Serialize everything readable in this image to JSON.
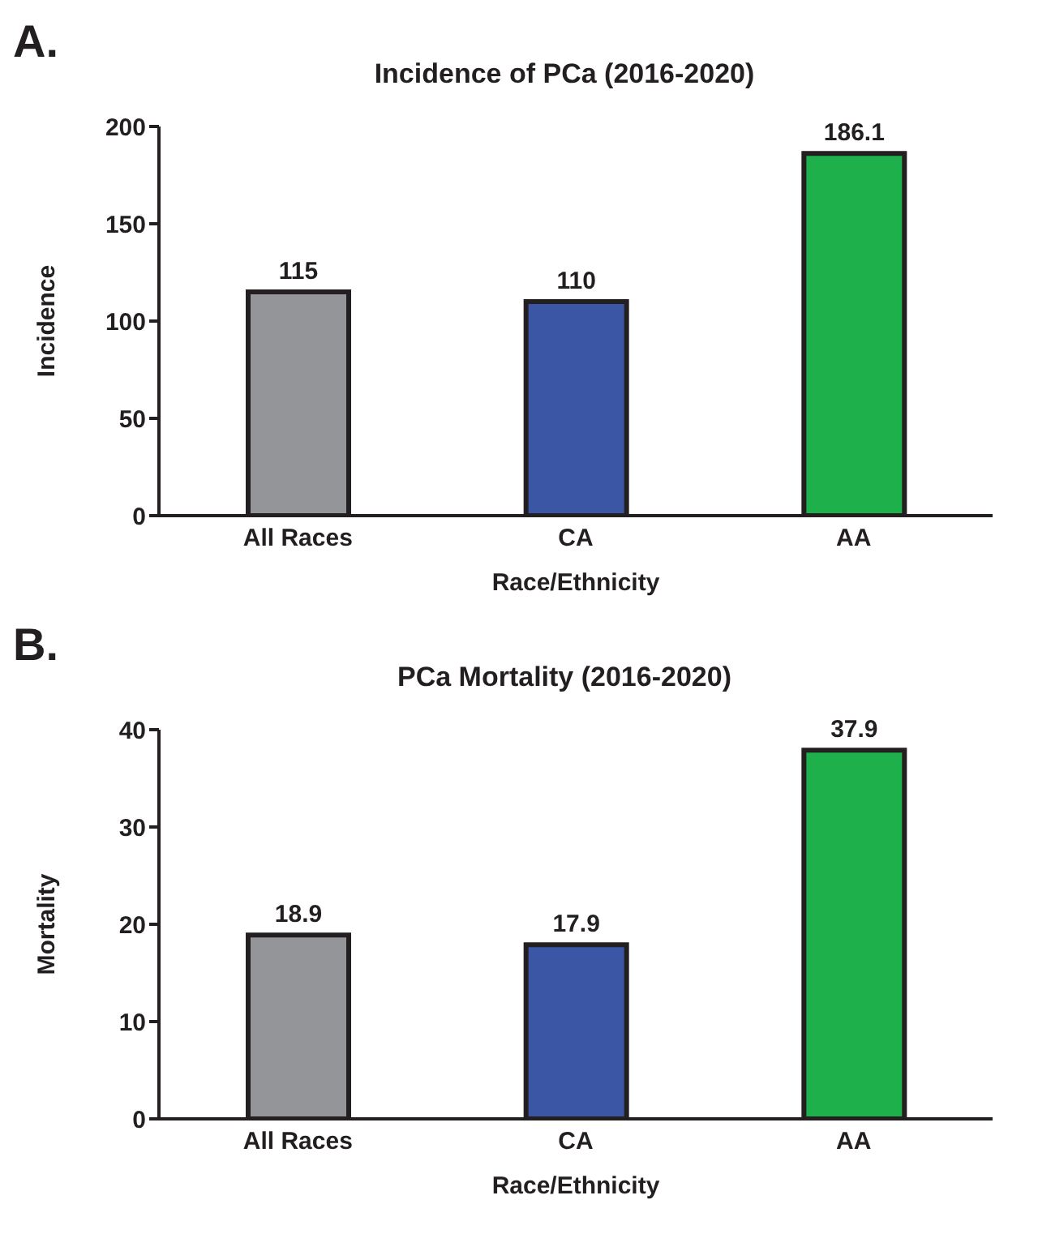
{
  "chart_data": [
    {
      "type": "bar",
      "title": "Incidence of PCa (2016-2020)",
      "annotations": [
        "A."
      ],
      "xlabel": "Race/Ethnicity",
      "ylabel": "Incidence",
      "categories": [
        "All Races",
        "CA",
        "AA"
      ],
      "values": [
        115,
        110,
        186.1
      ],
      "colors": [
        "#939598",
        "#3a56a5",
        "#1db04b"
      ],
      "ylim": [
        0,
        200
      ],
      "yticks": [
        0,
        50,
        100,
        150,
        200
      ],
      "data_labels": true,
      "grid": false,
      "legend": false
    },
    {
      "type": "bar",
      "title": "PCa Mortality (2016-2020)",
      "annotations": [
        "B."
      ],
      "xlabel": "Race/Ethnicity",
      "ylabel": "Mortality",
      "categories": [
        "All Races",
        "CA",
        "AA"
      ],
      "values": [
        18.9,
        17.9,
        37.9
      ],
      "colors": [
        "#939598",
        "#3a56a5",
        "#1db04b"
      ],
      "ylim": [
        0,
        40
      ],
      "yticks": [
        0,
        10,
        20,
        30,
        40
      ],
      "data_labels": true,
      "grid": false,
      "legend": false
    }
  ]
}
